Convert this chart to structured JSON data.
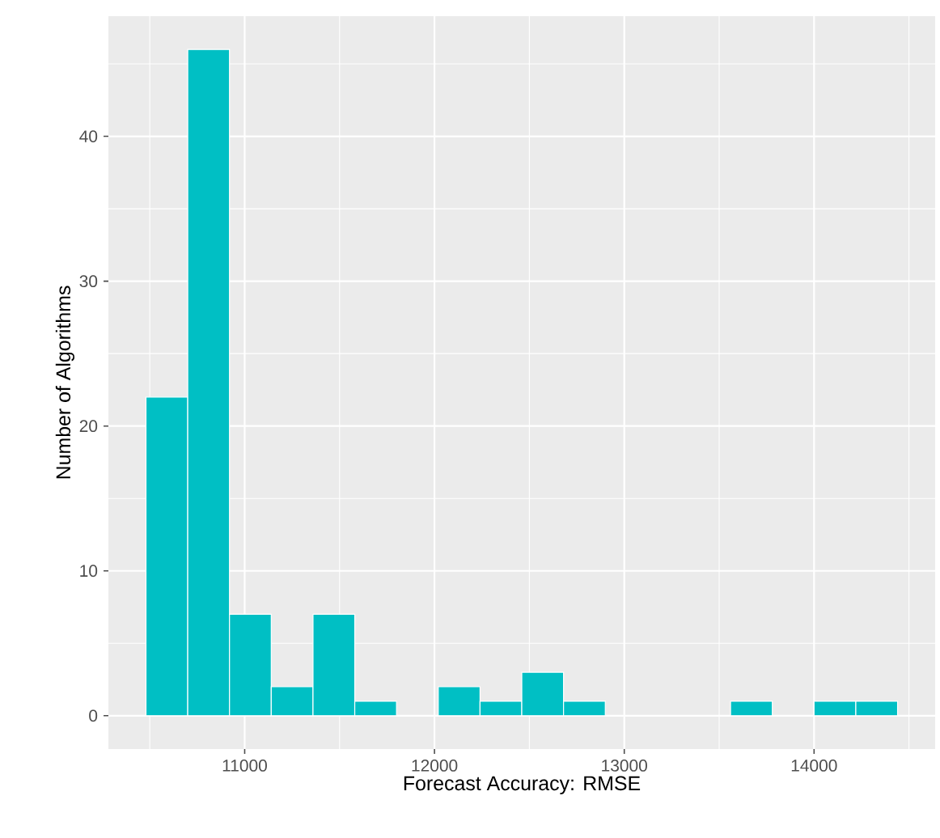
{
  "chart_data": {
    "type": "histogram",
    "xlabel": "Forecast Accuracy: RMSE",
    "ylabel": "Number of Algorithms",
    "bins": [
      10480,
      10700,
      10920,
      11140,
      11360,
      11580,
      11800,
      12020,
      12240,
      12460,
      12680,
      12900,
      13120,
      13340,
      13560,
      13780,
      14000,
      14220,
      14440
    ],
    "values": [
      22,
      46,
      7,
      2,
      7,
      1,
      0,
      2,
      1,
      3,
      1,
      0,
      0,
      0,
      1,
      0,
      1,
      1
    ],
    "color": "#00bfc4",
    "xlim": [
      10282,
      14638
    ],
    "xticks": [
      11000,
      12000,
      13000,
      14000
    ],
    "ylim": [
      -2.3,
      48.3
    ],
    "yticks": [
      0,
      10,
      20,
      30,
      40
    ],
    "grid": true
  }
}
